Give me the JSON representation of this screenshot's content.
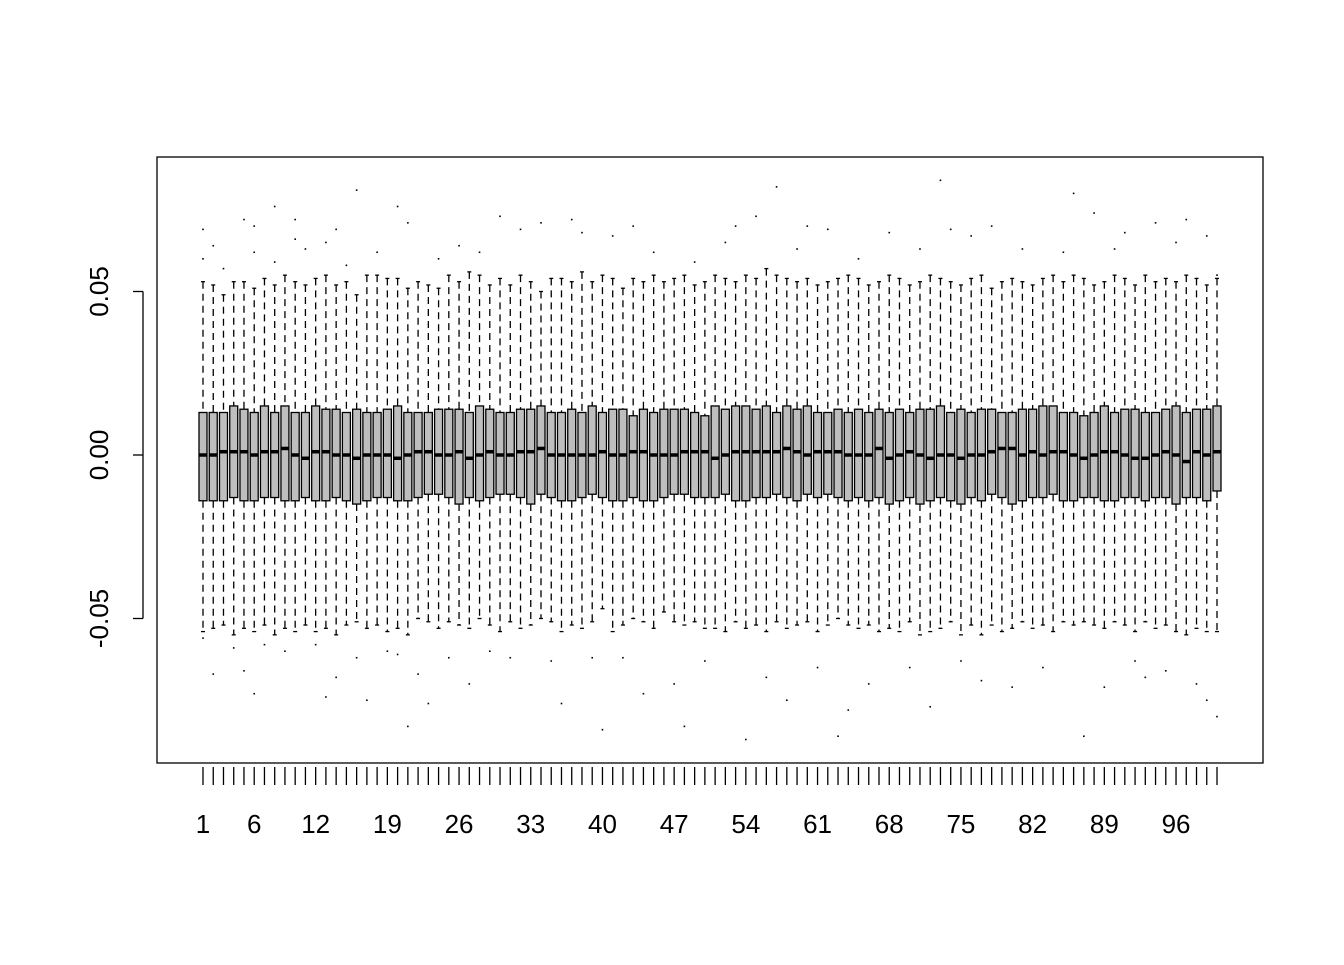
{
  "chart_data": {
    "type": "boxplot",
    "title": "",
    "xlabel": "",
    "ylabel": "",
    "ylim": [
      -0.093,
      0.092
    ],
    "yticks": [
      -0.05,
      0.0,
      0.05
    ],
    "ytick_labels": [
      "-0.05",
      "0.00",
      "0.05"
    ],
    "xtick_labels": [
      "1",
      "6",
      "12",
      "19",
      "26",
      "33",
      "40",
      "47",
      "54",
      "61",
      "68",
      "75",
      "82",
      "89",
      "96"
    ],
    "xtick_positions": [
      1,
      6,
      12,
      19,
      26,
      33,
      40,
      47,
      54,
      61,
      68,
      75,
      82,
      89,
      96
    ],
    "box_color": "#bebebe",
    "n": 100,
    "median": [
      0.0,
      0.0,
      0.001,
      0.001,
      0.001,
      0.0,
      0.001,
      0.001,
      0.002,
      0.0,
      -0.001,
      0.001,
      0.001,
      0.0,
      0.0,
      -0.001,
      0.0,
      0.0,
      0.0,
      -0.001,
      0.0,
      0.001,
      0.001,
      0.0,
      0.0,
      0.001,
      -0.001,
      0.0,
      0.001,
      0.0,
      0.0,
      0.001,
      0.001,
      0.002,
      0.0,
      0.0,
      0.0,
      0.0,
      0.0,
      0.001,
      0.0,
      0.0,
      0.001,
      0.001,
      0.0,
      0.0,
      0.0,
      0.001,
      0.001,
      0.001,
      -0.001,
      0.0,
      0.001,
      0.001,
      0.001,
      0.001,
      0.001,
      0.002,
      0.001,
      0.0,
      0.001,
      0.001,
      0.001,
      0.0,
      0.0,
      0.0,
      0.002,
      -0.001,
      0.0,
      0.001,
      0.0,
      -0.001,
      0.0,
      0.0,
      -0.001,
      0.0,
      0.0,
      0.001,
      0.002,
      0.002,
      0.0,
      0.001,
      0.0,
      0.001,
      0.001,
      0.0,
      -0.001,
      0.0,
      0.001,
      0.001,
      0.0,
      -0.001,
      -0.001,
      0.0,
      0.001,
      0.0,
      -0.002,
      0.001,
      0.0,
      0.001,
      0.001,
      0.002
    ],
    "q1": [
      -0.014,
      -0.014,
      -0.014,
      -0.013,
      -0.014,
      -0.014,
      -0.013,
      -0.013,
      -0.014,
      -0.014,
      -0.013,
      -0.014,
      -0.014,
      -0.013,
      -0.014,
      -0.015,
      -0.014,
      -0.013,
      -0.013,
      -0.014,
      -0.014,
      -0.013,
      -0.012,
      -0.012,
      -0.013,
      -0.015,
      -0.013,
      -0.014,
      -0.013,
      -0.012,
      -0.012,
      -0.013,
      -0.015,
      -0.012,
      -0.013,
      -0.014,
      -0.014,
      -0.013,
      -0.012,
      -0.013,
      -0.014,
      -0.014,
      -0.013,
      -0.014,
      -0.014,
      -0.013,
      -0.012,
      -0.012,
      -0.013,
      -0.013,
      -0.013,
      -0.012,
      -0.014,
      -0.014,
      -0.013,
      -0.013,
      -0.012,
      -0.013,
      -0.014,
      -0.012,
      -0.013,
      -0.012,
      -0.013,
      -0.014,
      -0.013,
      -0.014,
      -0.013,
      -0.015,
      -0.014,
      -0.013,
      -0.015,
      -0.014,
      -0.013,
      -0.014,
      -0.015,
      -0.013,
      -0.014,
      -0.012,
      -0.013,
      -0.015,
      -0.014,
      -0.013,
      -0.013,
      -0.012,
      -0.014,
      -0.014,
      -0.013,
      -0.013,
      -0.014,
      -0.014,
      -0.013,
      -0.013,
      -0.014,
      -0.013,
      -0.013,
      -0.015,
      -0.013,
      -0.013,
      -0.014,
      -0.011
    ],
    "q3": [
      0.013,
      0.013,
      0.013,
      0.015,
      0.014,
      0.013,
      0.015,
      0.013,
      0.015,
      0.013,
      0.013,
      0.015,
      0.014,
      0.014,
      0.013,
      0.014,
      0.013,
      0.013,
      0.014,
      0.015,
      0.013,
      0.013,
      0.013,
      0.014,
      0.014,
      0.014,
      0.013,
      0.015,
      0.014,
      0.013,
      0.013,
      0.014,
      0.014,
      0.015,
      0.013,
      0.013,
      0.014,
      0.013,
      0.015,
      0.013,
      0.014,
      0.014,
      0.012,
      0.014,
      0.013,
      0.014,
      0.014,
      0.014,
      0.013,
      0.012,
      0.015,
      0.014,
      0.015,
      0.015,
      0.014,
      0.015,
      0.013,
      0.015,
      0.014,
      0.015,
      0.013,
      0.013,
      0.014,
      0.013,
      0.014,
      0.013,
      0.014,
      0.013,
      0.014,
      0.013,
      0.014,
      0.014,
      0.015,
      0.013,
      0.014,
      0.013,
      0.014,
      0.014,
      0.013,
      0.013,
      0.014,
      0.014,
      0.015,
      0.015,
      0.013,
      0.013,
      0.012,
      0.013,
      0.015,
      0.013,
      0.014,
      0.014,
      0.013,
      0.013,
      0.014,
      0.015,
      0.013,
      0.014,
      0.014,
      0.015
    ],
    "whisker_low": [
      -0.054,
      -0.053,
      -0.052,
      -0.055,
      -0.053,
      -0.054,
      -0.052,
      -0.055,
      -0.053,
      -0.054,
      -0.052,
      -0.054,
      -0.053,
      -0.055,
      -0.052,
      -0.051,
      -0.053,
      -0.052,
      -0.054,
      -0.053,
      -0.055,
      -0.05,
      -0.051,
      -0.053,
      -0.051,
      -0.052,
      -0.053,
      -0.05,
      -0.052,
      -0.054,
      -0.051,
      -0.053,
      -0.052,
      -0.05,
      -0.051,
      -0.054,
      -0.052,
      -0.053,
      -0.051,
      -0.047,
      -0.054,
      -0.052,
      -0.05,
      -0.051,
      -0.053,
      -0.048,
      -0.051,
      -0.052,
      -0.051,
      -0.053,
      -0.053,
      -0.054,
      -0.051,
      -0.053,
      -0.052,
      -0.054,
      -0.051,
      -0.053,
      -0.052,
      -0.051,
      -0.054,
      -0.052,
      -0.05,
      -0.052,
      -0.053,
      -0.052,
      -0.054,
      -0.053,
      -0.054,
      -0.051,
      -0.055,
      -0.054,
      -0.053,
      -0.051,
      -0.055,
      -0.052,
      -0.055,
      -0.052,
      -0.054,
      -0.053,
      -0.051,
      -0.053,
      -0.052,
      -0.054,
      -0.051,
      -0.052,
      -0.051,
      -0.052,
      -0.053,
      -0.051,
      -0.052,
      -0.054,
      -0.051,
      -0.053,
      -0.052,
      -0.054,
      -0.055,
      -0.053,
      -0.054,
      -0.054
    ],
    "whisker_high": [
      0.053,
      0.052,
      0.049,
      0.053,
      0.053,
      0.051,
      0.054,
      0.052,
      0.055,
      0.053,
      0.052,
      0.054,
      0.055,
      0.052,
      0.053,
      0.049,
      0.055,
      0.055,
      0.054,
      0.054,
      0.051,
      0.053,
      0.052,
      0.051,
      0.055,
      0.053,
      0.056,
      0.055,
      0.052,
      0.054,
      0.052,
      0.055,
      0.053,
      0.05,
      0.054,
      0.054,
      0.053,
      0.056,
      0.053,
      0.055,
      0.054,
      0.051,
      0.054,
      0.053,
      0.055,
      0.053,
      0.054,
      0.055,
      0.052,
      0.053,
      0.055,
      0.054,
      0.053,
      0.055,
      0.054,
      0.057,
      0.055,
      0.054,
      0.053,
      0.054,
      0.052,
      0.053,
      0.054,
      0.055,
      0.054,
      0.052,
      0.053,
      0.055,
      0.054,
      0.052,
      0.053,
      0.055,
      0.054,
      0.053,
      0.052,
      0.054,
      0.055,
      0.051,
      0.053,
      0.054,
      0.053,
      0.052,
      0.054,
      0.055,
      0.053,
      0.055,
      0.054,
      0.052,
      0.053,
      0.055,
      0.054,
      0.052,
      0.055,
      0.053,
      0.054,
      0.053,
      0.055,
      0.054,
      0.052,
      0.054
    ],
    "outliers": [
      [
        1,
        0.069
      ],
      [
        1,
        0.06
      ],
      [
        1,
        -0.056
      ],
      [
        2,
        -0.067
      ],
      [
        2,
        0.064
      ],
      [
        3,
        0.057
      ],
      [
        4,
        -0.059
      ],
      [
        5,
        0.072
      ],
      [
        5,
        -0.066
      ],
      [
        6,
        0.07
      ],
      [
        6,
        -0.073
      ],
      [
        6,
        0.062
      ],
      [
        7,
        -0.058
      ],
      [
        8,
        0.076
      ],
      [
        8,
        0.059
      ],
      [
        9,
        -0.06
      ],
      [
        10,
        0.072
      ],
      [
        10,
        0.066
      ],
      [
        11,
        0.063
      ],
      [
        12,
        -0.058
      ],
      [
        13,
        0.065
      ],
      [
        13,
        -0.074
      ],
      [
        14,
        -0.068
      ],
      [
        14,
        0.069
      ],
      [
        15,
        0.058
      ],
      [
        16,
        -0.062
      ],
      [
        16,
        0.081
      ],
      [
        17,
        -0.075
      ],
      [
        18,
        0.062
      ],
      [
        19,
        -0.06
      ],
      [
        20,
        0.076
      ],
      [
        20,
        -0.061
      ],
      [
        21,
        0.071
      ],
      [
        21,
        -0.083
      ],
      [
        22,
        -0.067
      ],
      [
        23,
        -0.076
      ],
      [
        24,
        0.06
      ],
      [
        25,
        -0.062
      ],
      [
        26,
        0.064
      ],
      [
        27,
        -0.07
      ],
      [
        28,
        0.062
      ],
      [
        29,
        -0.06
      ],
      [
        30,
        0.073
      ],
      [
        31,
        -0.062
      ],
      [
        32,
        0.069
      ],
      [
        34,
        0.071
      ],
      [
        35,
        -0.063
      ],
      [
        36,
        -0.076
      ],
      [
        37,
        0.072
      ],
      [
        38,
        0.068
      ],
      [
        39,
        -0.062
      ],
      [
        40,
        -0.084
      ],
      [
        41,
        0.067
      ],
      [
        42,
        -0.062
      ],
      [
        43,
        0.07
      ],
      [
        44,
        -0.073
      ],
      [
        45,
        0.062
      ],
      [
        47,
        -0.07
      ],
      [
        48,
        -0.083
      ],
      [
        49,
        0.059
      ],
      [
        50,
        -0.063
      ],
      [
        52,
        0.065
      ],
      [
        53,
        0.07
      ],
      [
        54,
        -0.087
      ],
      [
        55,
        0.073
      ],
      [
        56,
        -0.068
      ],
      [
        57,
        0.082
      ],
      [
        58,
        -0.075
      ],
      [
        59,
        0.063
      ],
      [
        60,
        0.07
      ],
      [
        61,
        -0.065
      ],
      [
        62,
        0.069
      ],
      [
        63,
        -0.086
      ],
      [
        64,
        -0.078
      ],
      [
        65,
        0.06
      ],
      [
        66,
        -0.07
      ],
      [
        68,
        0.068
      ],
      [
        70,
        -0.065
      ],
      [
        71,
        0.063
      ],
      [
        72,
        -0.077
      ],
      [
        73,
        0.084
      ],
      [
        74,
        0.069
      ],
      [
        75,
        -0.063
      ],
      [
        76,
        0.067
      ],
      [
        77,
        -0.069
      ],
      [
        78,
        0.07
      ],
      [
        80,
        -0.071
      ],
      [
        81,
        0.063
      ],
      [
        83,
        -0.065
      ],
      [
        85,
        0.062
      ],
      [
        86,
        0.08
      ],
      [
        87,
        -0.086
      ],
      [
        88,
        0.074
      ],
      [
        89,
        -0.071
      ],
      [
        90,
        0.063
      ],
      [
        91,
        0.068
      ],
      [
        92,
        -0.063
      ],
      [
        93,
        -0.068
      ],
      [
        94,
        0.071
      ],
      [
        95,
        -0.066
      ],
      [
        96,
        0.065
      ],
      [
        97,
        0.072
      ],
      [
        98,
        -0.07
      ],
      [
        99,
        0.067
      ],
      [
        99,
        -0.075
      ],
      [
        100,
        -0.08
      ],
      [
        100,
        0.055
      ]
    ]
  }
}
